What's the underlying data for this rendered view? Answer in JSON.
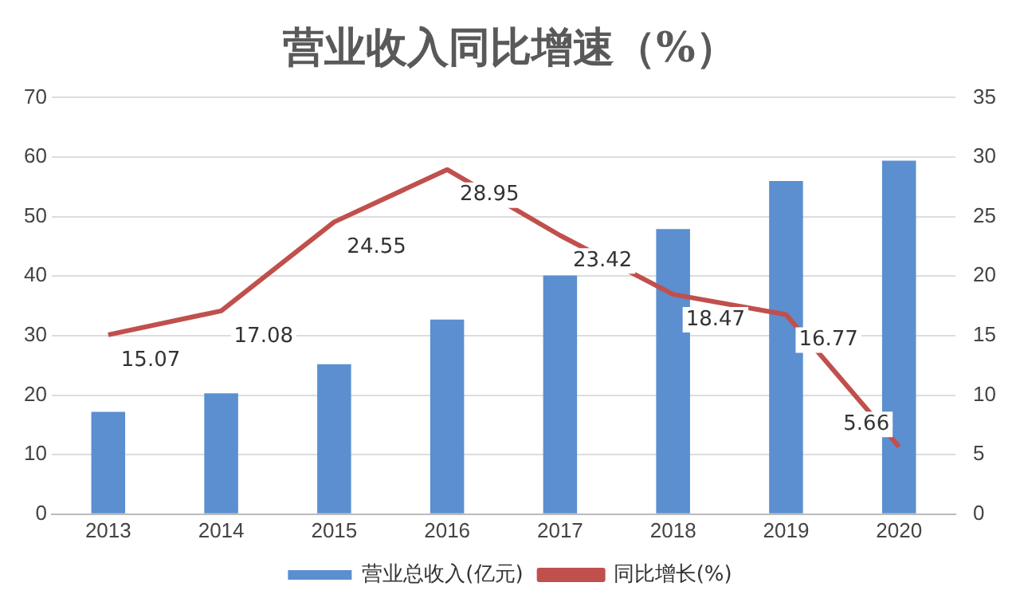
{
  "chart_data": {
    "type": "bar",
    "title": "营业收入同比增速（%）",
    "categories": [
      "2013",
      "2014",
      "2015",
      "2016",
      "2017",
      "2018",
      "2019",
      "2020"
    ],
    "series": [
      {
        "name": "营业总收入(亿元)",
        "color": "#5b8fd0",
        "values": [
          17.2,
          20.3,
          25.2,
          32.7,
          40.1,
          47.9,
          56.0,
          59.4
        ]
      },
      {
        "name": "同比增长(%)",
        "type": "line",
        "axis": "y2",
        "color": "#c0504d",
        "values": [
          15.07,
          17.08,
          24.55,
          28.95,
          23.42,
          18.47,
          16.77,
          5.66
        ],
        "value_labels": [
          "15.07",
          "17.08",
          "24.55",
          "28.95",
          "23.42",
          "18.47",
          "16.77",
          "5.66"
        ]
      }
    ],
    "ylim": [
      0,
      70
    ],
    "yticks": [
      0,
      10,
      20,
      30,
      40,
      50,
      60,
      70
    ],
    "y2lim": [
      0,
      35
    ],
    "y2ticks": [
      0,
      5,
      10,
      15,
      20,
      25,
      30,
      35
    ],
    "grid": "y",
    "legend": "bottom",
    "marker": "none",
    "line_style": "solid"
  }
}
